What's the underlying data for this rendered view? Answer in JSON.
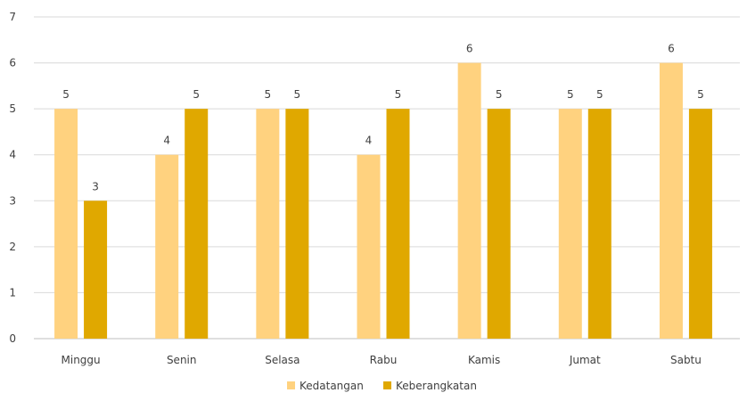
{
  "chart_data": {
    "type": "bar",
    "categories": [
      "Minggu",
      "Senin",
      "Selasa",
      "Rabu",
      "Kamis",
      "Jumat",
      "Sabtu"
    ],
    "series": [
      {
        "name": "Kedatangan",
        "values": [
          5,
          4,
          5,
          4,
          6,
          5,
          6
        ],
        "color": "#ffd27f"
      },
      {
        "name": "Keberangkatan",
        "values": [
          3,
          5,
          5,
          5,
          5,
          5,
          5
        ],
        "color": "#e0a800"
      }
    ],
    "yticks": [
      0,
      1,
      2,
      3,
      4,
      5,
      6,
      7
    ],
    "ylim": [
      0,
      7
    ],
    "title": "",
    "xlabel": "",
    "ylabel": "",
    "grid": true,
    "data_labels": true,
    "legend": "bottom-center"
  }
}
